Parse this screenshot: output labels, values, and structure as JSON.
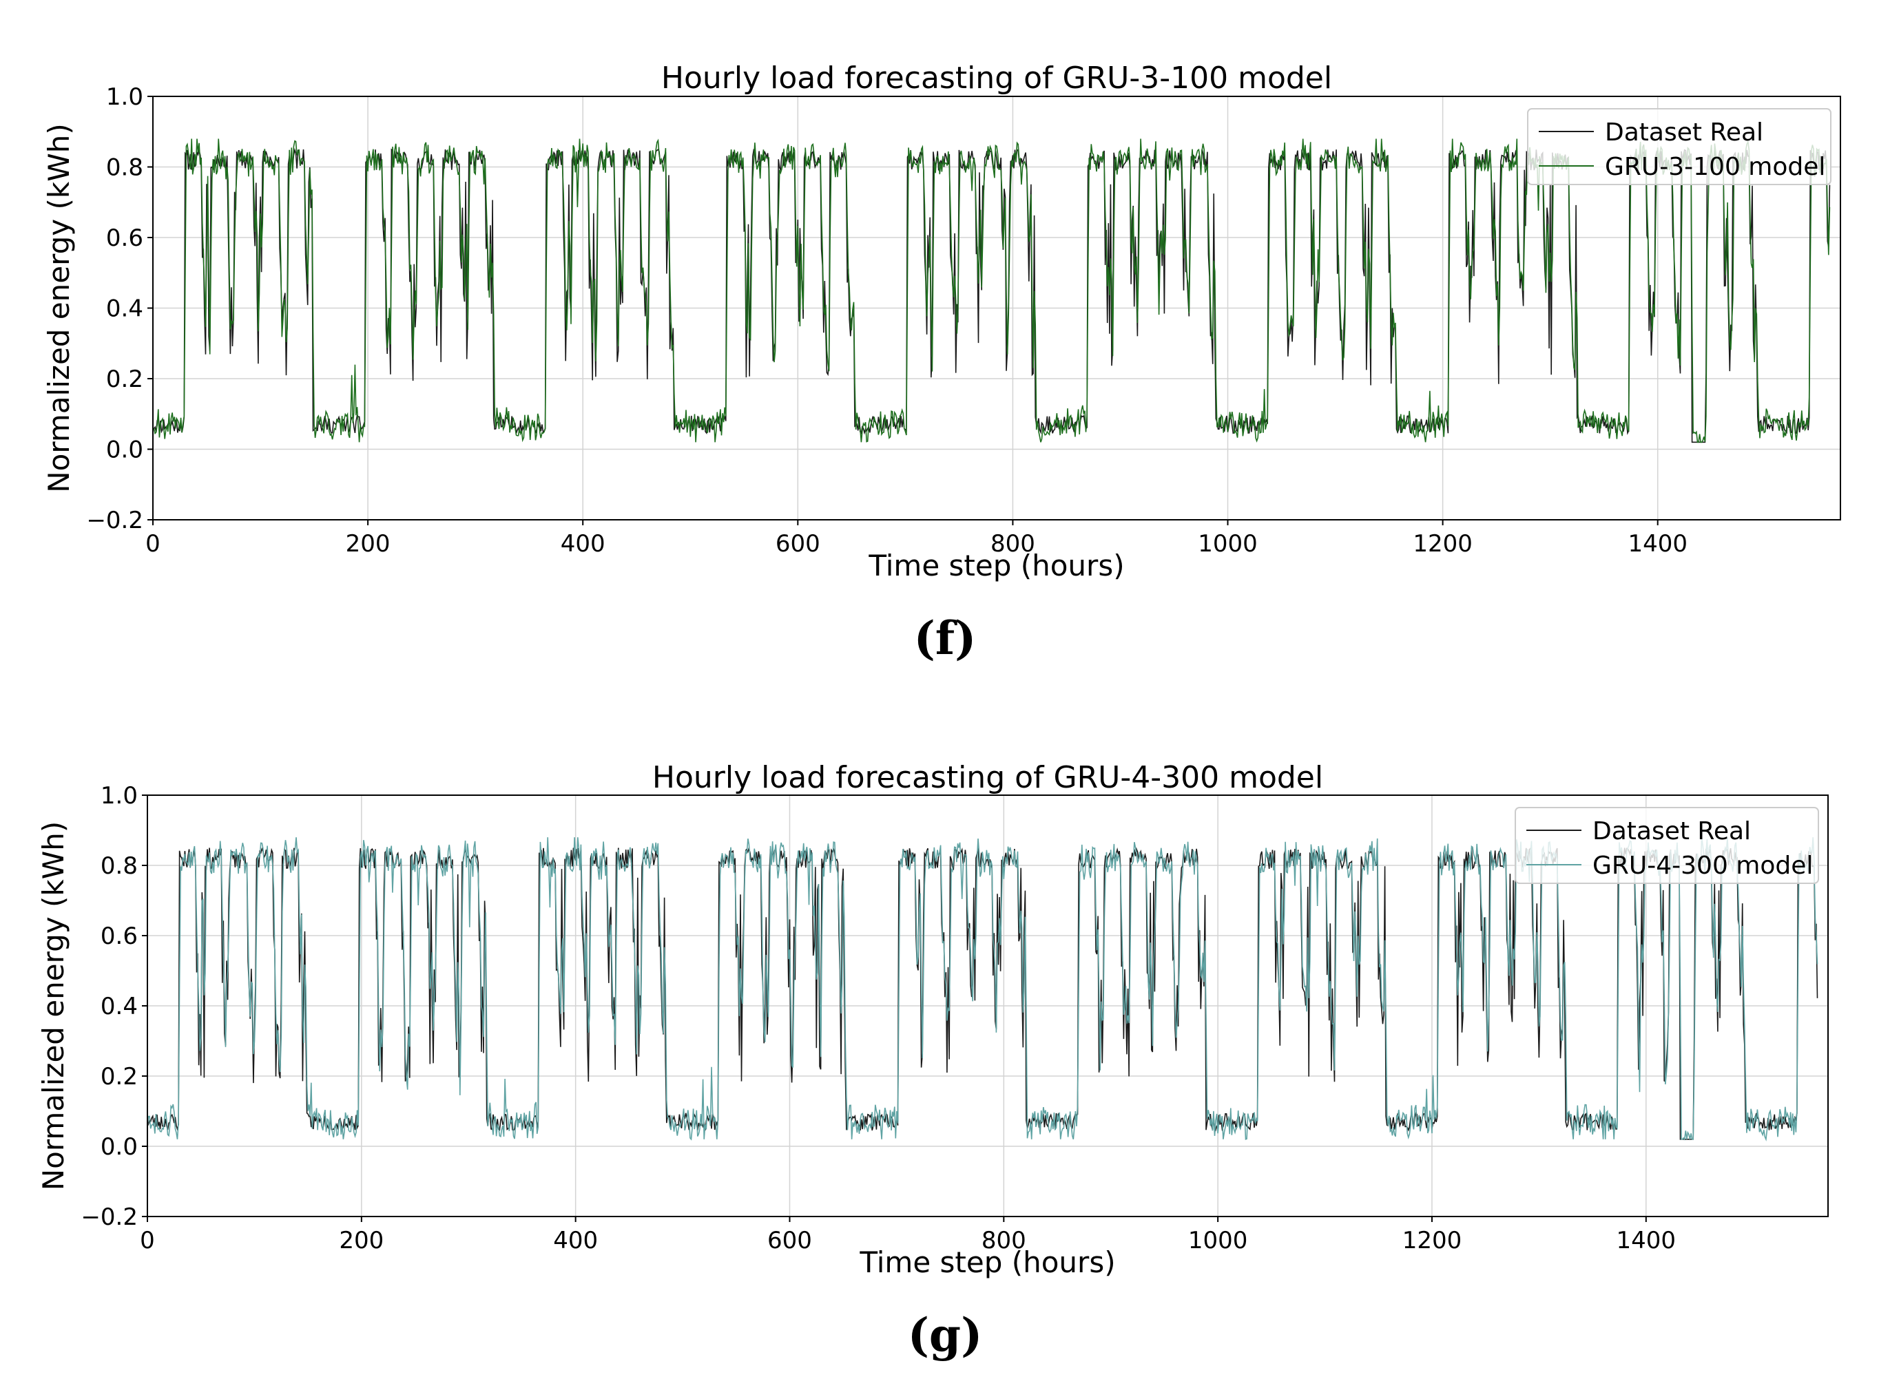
{
  "colors": {
    "real": "#1a1a1a",
    "model_f": "#1e6f1e",
    "model_g": "#5fa3a3",
    "grid": "#d3d3d3"
  },
  "chart_data": [
    {
      "type": "line",
      "panel": "(f)",
      "title": "Hourly load forecasting of GRU-3-100 model",
      "xlabel": "Time step (hours)",
      "ylabel": "Normalized energy (kWh)",
      "xlim": [
        0,
        1570
      ],
      "ylim": [
        -0.2,
        1.0
      ],
      "xticks": [
        0,
        200,
        400,
        600,
        800,
        1000,
        1200,
        1400
      ],
      "yticks": [
        -0.2,
        0.0,
        0.2,
        0.4,
        0.6,
        0.8,
        1.0
      ],
      "ytick_labels": [
        "−0.2",
        "0.0",
        "0.2",
        "0.4",
        "0.6",
        "0.8",
        "1.0"
      ],
      "grid": true,
      "legend_position": "top-right",
      "series": [
        {
          "name": "Dataset Real",
          "role": "real"
        },
        {
          "name": "GRU-3-100 model",
          "role": "model"
        }
      ],
      "shape": {
        "seed": 11,
        "lag": 1,
        "noise": 0.035,
        "amp": 0.055
      }
    },
    {
      "type": "line",
      "panel": "(g)",
      "title": "Hourly load forecasting of GRU-4-300 model",
      "xlabel": "Time step (hours)",
      "ylabel": "Normalized energy (kWh)",
      "xlim": [
        0,
        1570
      ],
      "ylim": [
        -0.2,
        1.0
      ],
      "xticks": [
        0,
        200,
        400,
        600,
        800,
        1000,
        1200,
        1400
      ],
      "yticks": [
        -0.2,
        0.0,
        0.2,
        0.4,
        0.6,
        0.8,
        1.0
      ],
      "ytick_labels": [
        "−0.2",
        "0.0",
        "0.2",
        "0.4",
        "0.6",
        "0.8",
        "1.0"
      ],
      "grid": true,
      "legend_position": "top-right",
      "series": [
        {
          "name": "Dataset Real",
          "role": "real"
        },
        {
          "name": "GRU-4-300 model",
          "role": "model"
        }
      ],
      "shape": {
        "seed": 23,
        "lag": 1,
        "noise": 0.04,
        "amp": 0.06
      }
    }
  ],
  "real_profile": {
    "hours": 1561,
    "period_hours": 168,
    "weekday_level": 0.82,
    "night_level": 0.18,
    "weekend_level": 0.07,
    "weekend_start_offset": 143,
    "first_week_start": 30,
    "zero_dip_start": 1432,
    "zero_dip_end": 1444
  }
}
